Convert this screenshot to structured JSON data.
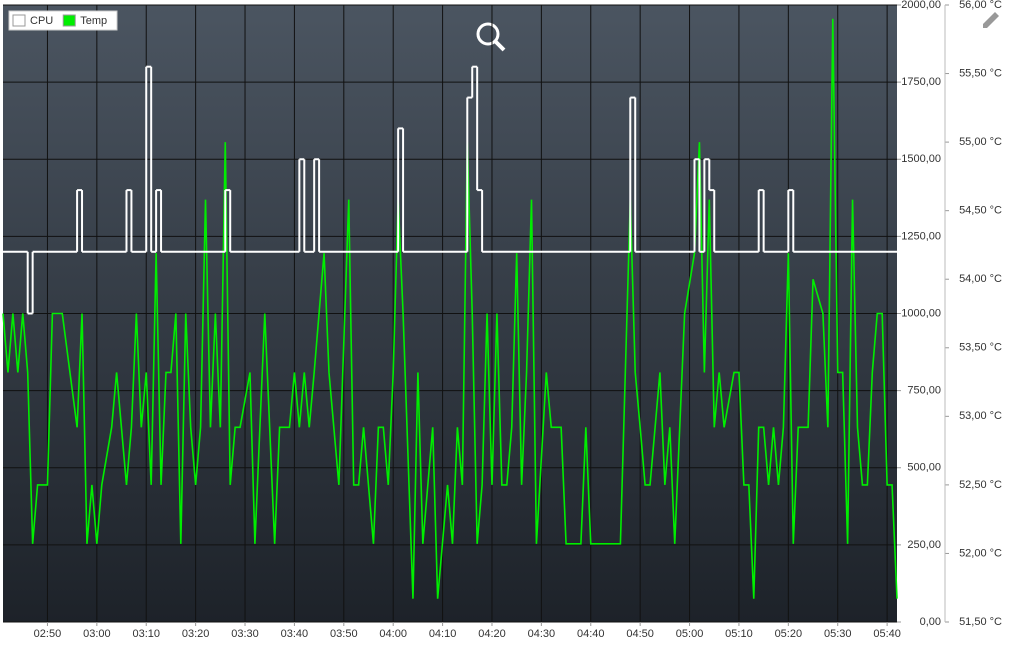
{
  "chart_data": {
    "type": "line",
    "xlim": [
      "02:41",
      "05:42"
    ],
    "xticks": [
      "02:50",
      "03:00",
      "03:10",
      "03:20",
      "03:30",
      "03:40",
      "03:50",
      "04:00",
      "04:10",
      "04:20",
      "04:30",
      "04:40",
      "04:50",
      "05:00",
      "05:10",
      "05:20",
      "05:30",
      "05:40"
    ],
    "ylim": [
      0,
      2000
    ],
    "yticks": [
      {
        "value": 0,
        "label": "0,00"
      },
      {
        "value": 250,
        "label": "250,00"
      },
      {
        "value": 500,
        "label": "500,00"
      },
      {
        "value": 750,
        "label": "750,00"
      },
      {
        "value": 1000,
        "label": "1000,00"
      },
      {
        "value": 1250,
        "label": "1250,00"
      },
      {
        "value": 1500,
        "label": "1500,00"
      },
      {
        "value": 1750,
        "label": "1750,00"
      },
      {
        "value": 2000,
        "label": "2000,00"
      }
    ],
    "y2lim": [
      51.5,
      56
    ],
    "y2ticks": [
      {
        "value": 51.5,
        "label": "51,50 °C"
      },
      {
        "value": 52,
        "label": "52,00 °C"
      },
      {
        "value": 52.5,
        "label": "52,50 °C"
      },
      {
        "value": 53,
        "label": "53,00 °C"
      },
      {
        "value": 53.5,
        "label": "53,50 °C"
      },
      {
        "value": 54,
        "label": "54,00 °C"
      },
      {
        "value": 54.5,
        "label": "54,50 °C"
      },
      {
        "value": 55,
        "label": "55,00 °C"
      },
      {
        "value": 55.5,
        "label": "55,50 °C"
      },
      {
        "value": 56,
        "label": "56,00 °C"
      }
    ],
    "grid": true,
    "legend": "top-left",
    "series": [
      {
        "name": "CPU",
        "color": "#ffffff",
        "step": "after",
        "x": [
          "02:41",
          "02:46",
          "02:47",
          "02:56",
          "02:57",
          "03:06",
          "03:07",
          "03:10",
          "03:11",
          "03:12",
          "03:13",
          "03:26",
          "03:27",
          "03:41",
          "03:42",
          "03:44",
          "03:45",
          "04:01",
          "04:02",
          "04:15",
          "04:16",
          "04:17",
          "04:18",
          "04:48",
          "04:49",
          "05:01",
          "05:02",
          "05:03",
          "05:04",
          "05:05",
          "05:14",
          "05:15",
          "05:20",
          "05:21",
          "05:42"
        ],
        "values": [
          1200,
          1000,
          1200,
          1400,
          1200,
          1400,
          1200,
          1800,
          1200,
          1400,
          1200,
          1400,
          1200,
          1500,
          1200,
          1500,
          1200,
          1600,
          1200,
          1700,
          1800,
          1400,
          1200,
          1700,
          1200,
          1500,
          1200,
          1500,
          1400,
          1200,
          1400,
          1200,
          1400,
          1200,
          1200
        ]
      },
      {
        "name": "Temp",
        "color": "#00ee00",
        "axis": "y2",
        "x": [
          "02:41",
          "02:42",
          "02:43",
          "02:44",
          "02:45",
          "02:46",
          "02:47",
          "02:48",
          "02:50",
          "02:51",
          "02:53",
          "02:56",
          "02:57",
          "02:58",
          "02:59",
          "03:00",
          "03:01",
          "03:03",
          "03:04",
          "03:06",
          "03:07",
          "03:08",
          "03:09",
          "03:10",
          "03:11",
          "03:12",
          "03:13",
          "03:14",
          "03:15",
          "03:16",
          "03:17",
          "03:18",
          "03:19",
          "03:20",
          "03:21",
          "03:22",
          "03:23",
          "03:24",
          "03:25",
          "03:26",
          "03:27",
          "03:28",
          "03:29",
          "03:31",
          "03:32",
          "03:34",
          "03:36",
          "03:37",
          "03:39",
          "03:40",
          "03:41",
          "03:42",
          "03:43",
          "03:44",
          "03:46",
          "03:47",
          "03:49",
          "03:51",
          "03:52",
          "03:53",
          "03:54",
          "03:56",
          "03:57",
          "03:58",
          "03:59",
          "04:00",
          "04:01",
          "04:02",
          "04:04",
          "04:05",
          "04:06",
          "04:08",
          "04:09",
          "04:11",
          "04:12",
          "04:13",
          "04:14",
          "04:15",
          "04:16",
          "04:17",
          "04:18",
          "04:19",
          "04:20",
          "04:21",
          "04:22",
          "04:23",
          "04:24",
          "04:25",
          "04:26",
          "04:27",
          "04:28",
          "04:29",
          "04:31",
          "04:32",
          "04:34",
          "04:35",
          "04:36",
          "04:38",
          "04:39",
          "04:40",
          "04:41",
          "04:42",
          "04:43",
          "04:45",
          "04:46",
          "04:48",
          "04:49",
          "04:50",
          "04:51",
          "04:52",
          "04:54",
          "04:55",
          "04:56",
          "04:57",
          "04:59",
          "05:01",
          "05:02",
          "05:03",
          "05:04",
          "05:05",
          "05:06",
          "05:07",
          "05:09",
          "05:10",
          "05:11",
          "05:12",
          "05:13",
          "05:14",
          "05:15",
          "05:16",
          "05:17",
          "05:18",
          "05:19",
          "05:20",
          "05:21",
          "05:22",
          "05:24",
          "05:25",
          "05:27",
          "05:28",
          "05:29",
          "05:30",
          "05:31",
          "05:32",
          "05:33",
          "05:34",
          "05:35",
          "05:36",
          "05:37",
          "05:38",
          "05:39",
          "05:40",
          "05:41",
          "05:42"
        ],
        "values": [
          53.75,
          53.32,
          53.75,
          53.32,
          53.75,
          53.32,
          52.07,
          52.5,
          52.5,
          53.75,
          53.75,
          52.92,
          53.75,
          52.07,
          52.5,
          52.07,
          52.5,
          52.92,
          53.32,
          52.5,
          52.92,
          53.75,
          52.92,
          53.32,
          52.5,
          54.19,
          52.5,
          53.32,
          53.32,
          53.75,
          52.07,
          53.75,
          52.92,
          52.5,
          52.92,
          54.58,
          52.92,
          53.75,
          52.92,
          55.0,
          52.5,
          52.92,
          52.92,
          53.32,
          52.07,
          53.75,
          52.07,
          52.92,
          52.92,
          53.32,
          52.92,
          53.32,
          52.92,
          53.32,
          54.19,
          53.32,
          52.5,
          54.58,
          52.5,
          52.5,
          52.92,
          52.07,
          52.92,
          52.92,
          52.5,
          53.32,
          54.58,
          53.75,
          51.67,
          53.32,
          52.07,
          52.92,
          51.67,
          52.5,
          52.07,
          52.92,
          52.5,
          55.0,
          53.75,
          52.07,
          52.5,
          53.75,
          52.5,
          53.75,
          52.5,
          52.5,
          52.92,
          54.19,
          52.5,
          53.32,
          54.58,
          52.07,
          53.32,
          52.92,
          52.92,
          52.07,
          52.07,
          52.07,
          52.92,
          52.07,
          52.07,
          52.07,
          52.07,
          52.07,
          52.07,
          54.58,
          53.32,
          52.92,
          52.5,
          52.5,
          53.32,
          52.5,
          52.92,
          52.07,
          53.75,
          54.19,
          55.0,
          53.32,
          54.58,
          52.92,
          53.32,
          52.92,
          53.32,
          53.32,
          52.5,
          52.5,
          51.67,
          52.92,
          52.92,
          52.5,
          52.92,
          52.5,
          52.92,
          54.19,
          52.07,
          52.92,
          52.92,
          54.0,
          53.75,
          52.92,
          55.9,
          53.32,
          53.32,
          52.07,
          54.58,
          52.92,
          52.5,
          52.5,
          53.32,
          53.75,
          53.75,
          52.5,
          52.5,
          51.67
        ]
      }
    ]
  }
}
